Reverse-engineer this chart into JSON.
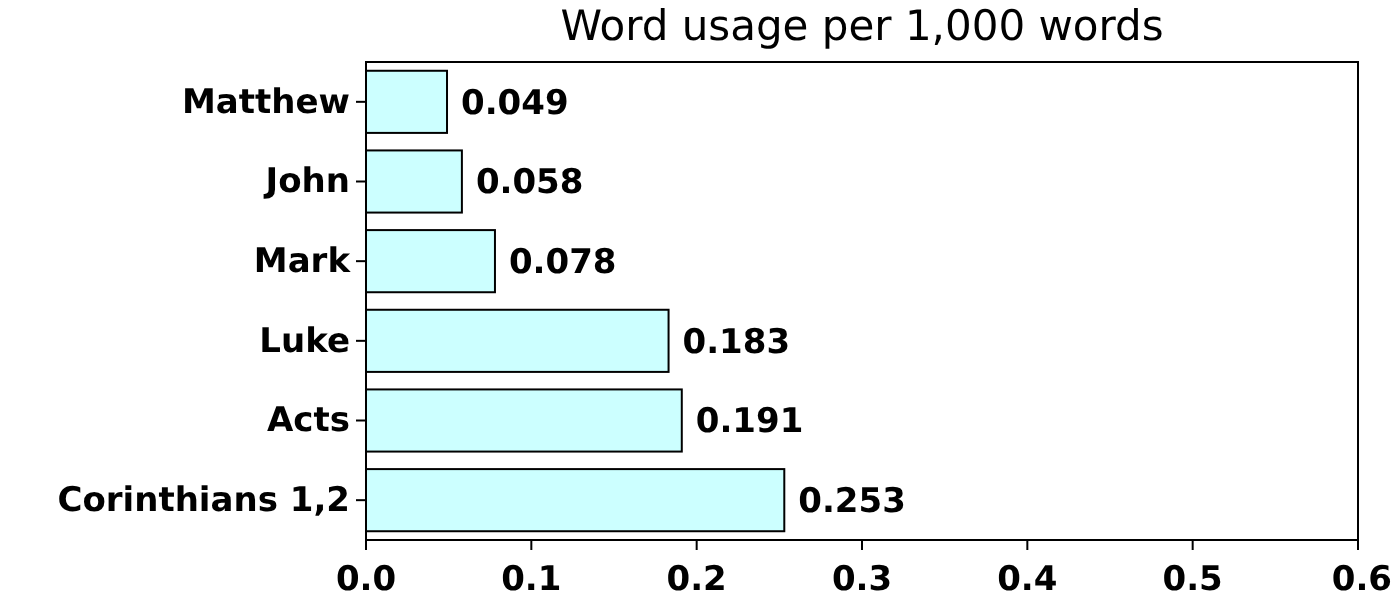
{
  "chart_data": {
    "type": "bar",
    "orientation": "horizontal",
    "title": "Word usage per 1,000 words",
    "categories": [
      "Matthew",
      "John",
      "Mark",
      "Luke",
      "Acts",
      "Corinthians 1,2"
    ],
    "values": [
      0.049,
      0.058,
      0.078,
      0.183,
      0.191,
      0.253
    ],
    "color": "#ccffff",
    "data_labels": true,
    "xlim": [
      0,
      0.6
    ],
    "xticks": [
      {
        "value": 0,
        "label": "0.0"
      },
      0.1,
      0.2,
      0.3,
      0.4,
      0.5,
      0.6
    ]
  }
}
